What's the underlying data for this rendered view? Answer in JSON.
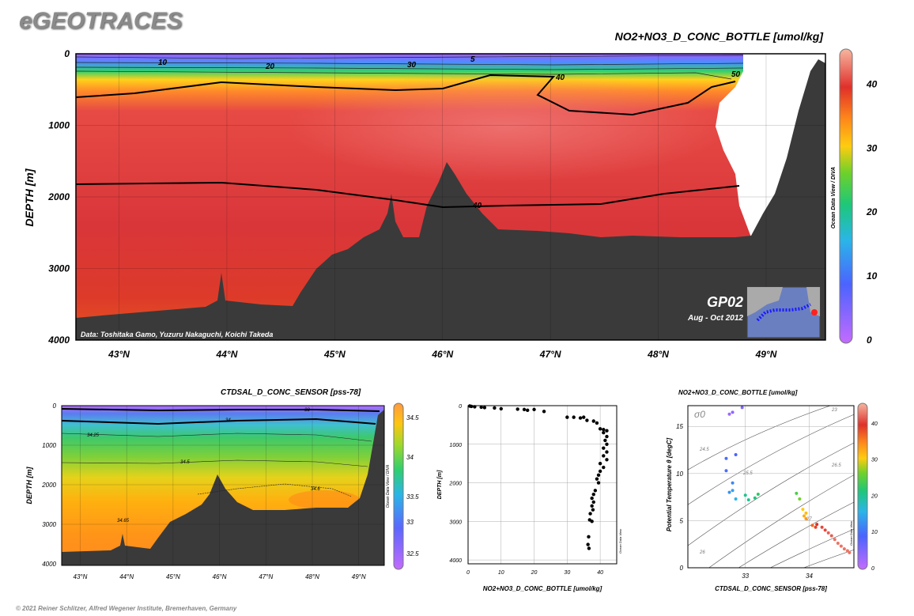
{
  "brand": "eGEOTRACES",
  "copyright": "© 2021 Reiner Schlitzer, Alfred Wegener Institute, Bremerhaven, Germany",
  "colors": {
    "land": "#3a3a3a",
    "contour": "#000000"
  },
  "chart_data": [
    {
      "type": "heatmap",
      "id": "main_section",
      "title": "NO2+NO3_D_CONC_BOTTLE [umol/kg]",
      "xlabel": "",
      "ylabel": "DEPTH [m]",
      "x_ticks": [
        "43°N",
        "44°N",
        "45°N",
        "46°N",
        "47°N",
        "48°N",
        "49°N"
      ],
      "y_ticks": [
        "0",
        "1000",
        "2000",
        "3000",
        "4000"
      ],
      "ylim": [
        0,
        4000
      ],
      "xlim": [
        42.6,
        49.55
      ],
      "colorbar": {
        "ticks": [
          "0",
          "10",
          "20",
          "30",
          "40"
        ],
        "range": [
          0,
          45
        ]
      },
      "contour_labels": [
        "10",
        "20",
        "30",
        "5",
        "40",
        "50",
        "40"
      ],
      "credit": "Data: Toshitaka Gamo, Yuzuru Nakaguchi, Koichi Takeda",
      "odv_label": "Ocean Data View / DIVA",
      "inset": {
        "cruise": "GP02",
        "dates": "Aug - Oct 2012"
      }
    },
    {
      "type": "heatmap",
      "id": "salinity_section",
      "title": "CTDSAL_D_CONC_SENSOR [pss-78]",
      "ylabel": "DEPTH [m]",
      "x_ticks": [
        "43°N",
        "44°N",
        "45°N",
        "46°N",
        "47°N",
        "48°N",
        "49°N"
      ],
      "y_ticks": [
        "0",
        "1000",
        "2000",
        "3000",
        "4000"
      ],
      "colorbar": {
        "ticks": [
          "34.5",
          "34",
          "33.5",
          "33",
          "32.5"
        ]
      },
      "contour_labels": [
        "33",
        "34",
        "34.25",
        "34.5",
        "34.6",
        "34.65"
      ],
      "odv_label": "Ocean Data View / DIVA"
    },
    {
      "type": "scatter",
      "id": "profile",
      "xlabel": "NO2+NO3_D_CONC_BOTTLE [umol/kg]",
      "ylabel": "DEPTH [m]",
      "x_ticks": [
        "0",
        "10",
        "20",
        "30",
        "40"
      ],
      "y_ticks": [
        "0",
        "1000",
        "2000",
        "3000",
        "4000"
      ],
      "xlim": [
        0,
        45
      ],
      "ylim": [
        0,
        4100
      ],
      "odv_label": "Ocean Data View",
      "points": [
        [
          0.5,
          10
        ],
        [
          1,
          20
        ],
        [
          2,
          30
        ],
        [
          4,
          40
        ],
        [
          5,
          50
        ],
        [
          8,
          60
        ],
        [
          10,
          80
        ],
        [
          15,
          90
        ],
        [
          17,
          100
        ],
        [
          18,
          120
        ],
        [
          20,
          100
        ],
        [
          23,
          150
        ],
        [
          30,
          300
        ],
        [
          32,
          300
        ],
        [
          34,
          320
        ],
        [
          35,
          300
        ],
        [
          36,
          380
        ],
        [
          38,
          400
        ],
        [
          39,
          450
        ],
        [
          40,
          600
        ],
        [
          41,
          620
        ],
        [
          42,
          650
        ],
        [
          41,
          700
        ],
        [
          42,
          800
        ],
        [
          41.5,
          900
        ],
        [
          42,
          1000
        ],
        [
          41,
          1100
        ],
        [
          42,
          1200
        ],
        [
          41,
          1300
        ],
        [
          42,
          1400
        ],
        [
          40,
          1500
        ],
        [
          41,
          1600
        ],
        [
          40,
          1700
        ],
        [
          39.5,
          1800
        ],
        [
          39,
          1900
        ],
        [
          39.5,
          2000
        ],
        [
          38.5,
          2200
        ],
        [
          38,
          2300
        ],
        [
          37.5,
          2400
        ],
        [
          38,
          2500
        ],
        [
          37.5,
          2600
        ],
        [
          37.8,
          2700
        ],
        [
          37,
          2800
        ],
        [
          36.8,
          2960
        ],
        [
          37.5,
          3000
        ],
        [
          36.5,
          3400
        ],
        [
          36.3,
          3600
        ],
        [
          36.6,
          3700
        ]
      ]
    },
    {
      "type": "scatter",
      "id": "ts_diagram",
      "title": "NO2+NO3_D_CONC_BOTTLE [umol/kg]",
      "xlabel": "CTDSAL_D_CONC_SENSOR [pss-78]",
      "ylabel": "Potential Temperature θ [degC]",
      "x_ticks": [
        "33",
        "34"
      ],
      "y_ticks": [
        "0",
        "5",
        "10",
        "15"
      ],
      "xlim": [
        32.1,
        34.7
      ],
      "ylim": [
        0,
        17.2
      ],
      "sigma_label": "σ0",
      "isopycnal_labels": [
        "23",
        "24.5",
        "25.5",
        "26",
        "26.5",
        "27"
      ],
      "colorbar": {
        "ticks": [
          "0",
          "10",
          "20",
          "30",
          "40"
        ],
        "range": [
          0,
          45
        ]
      },
      "odv_label": "Ocean Data View",
      "points": [
        [
          32.75,
          16.3,
          3
        ],
        [
          32.8,
          16.5,
          4
        ],
        [
          32.95,
          17.0,
          5
        ],
        [
          32.7,
          11.6,
          10
        ],
        [
          32.85,
          12.0,
          9
        ],
        [
          32.7,
          10.3,
          10
        ],
        [
          32.8,
          9.0,
          12
        ],
        [
          32.75,
          8.0,
          13
        ],
        [
          32.8,
          8.2,
          14
        ],
        [
          32.85,
          7.3,
          16
        ],
        [
          33.0,
          7.7,
          20
        ],
        [
          33.05,
          7.2,
          20
        ],
        [
          33.15,
          7.4,
          21
        ],
        [
          33.2,
          7.8,
          22
        ],
        [
          33.8,
          7.9,
          24
        ],
        [
          33.85,
          7.3,
          26
        ],
        [
          33.9,
          6.2,
          30
        ],
        [
          33.95,
          5.8,
          31
        ],
        [
          33.92,
          5.5,
          32
        ],
        [
          33.95,
          5.2,
          33
        ],
        [
          34.05,
          4.5,
          36
        ],
        [
          34.1,
          4.3,
          38
        ],
        [
          34.12,
          4.6,
          39
        ],
        [
          34.2,
          4.3,
          40
        ],
        [
          34.25,
          4.0,
          40
        ],
        [
          34.3,
          3.7,
          41
        ],
        [
          34.35,
          3.4,
          41
        ],
        [
          34.4,
          3.0,
          42
        ],
        [
          34.45,
          2.6,
          42
        ],
        [
          34.5,
          2.3,
          42
        ],
        [
          34.55,
          2.0,
          42
        ],
        [
          34.6,
          1.8,
          42
        ],
        [
          34.63,
          1.6,
          42
        ]
      ]
    }
  ]
}
